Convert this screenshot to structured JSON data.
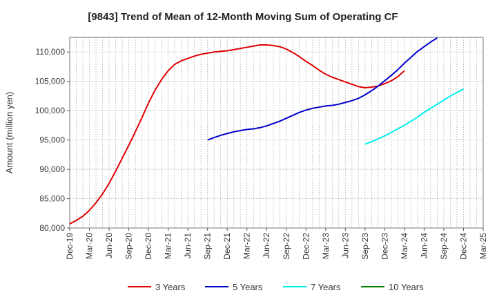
{
  "chart_data": {
    "type": "line",
    "title": "[9843]  Trend of Mean of 12-Month Moving Sum of Operating CF",
    "ylabel": "Amount (million yen)",
    "xlabel": "",
    "ylim": [
      80000,
      112500
    ],
    "yticks": [
      80000,
      85000,
      90000,
      95000,
      100000,
      105000,
      110000
    ],
    "ytick_labels": [
      "80,000",
      "85,000",
      "90,000",
      "95,000",
      "100,000",
      "105,000",
      "110,000"
    ],
    "x_start": "Dec-19",
    "x_end": "Mar-25",
    "x_tick_labels": [
      "Dec-19",
      "Mar-20",
      "Jun-20",
      "Sep-20",
      "Dec-20",
      "Mar-21",
      "Jun-21",
      "Sep-21",
      "Dec-21",
      "Mar-22",
      "Jun-22",
      "Sep-22",
      "Dec-22",
      "Mar-23",
      "Jun-23",
      "Sep-23",
      "Dec-23",
      "Mar-24",
      "Jun-24",
      "Sep-24",
      "Dec-24",
      "Mar-25"
    ],
    "grid": true,
    "legend_position": "bottom",
    "series": [
      {
        "name": "3 Years",
        "color": "#e00000",
        "start_index": 0,
        "values": [
          80700,
          81300,
          82000,
          83000,
          84300,
          85800,
          87600,
          89700,
          91900,
          94100,
          96400,
          98800,
          101300,
          103500,
          105300,
          106800,
          107900,
          108500,
          108900,
          109300,
          109600,
          109800,
          110000,
          110100,
          110200,
          110400,
          110600,
          110800,
          111000,
          111200,
          111200,
          111100,
          110900,
          110500,
          109900,
          109200,
          108400,
          107700,
          106900,
          106200,
          105700,
          105300,
          104900,
          104500,
          104100,
          103900,
          104000,
          104200,
          104600,
          105100,
          105800,
          106800
        ]
      },
      {
        "name": "5 Years",
        "color": "#0000cc",
        "start_index": 21,
        "values": [
          95000,
          95400,
          95800,
          96100,
          96400,
          96600,
          96800,
          96900,
          97100,
          97400,
          97800,
          98200,
          98700,
          99200,
          99700,
          100100,
          100400,
          100600,
          100800,
          100900,
          101100,
          101400,
          101700,
          102100,
          102700,
          103400,
          104200,
          105100,
          106000,
          107000,
          108100,
          109100,
          110100,
          110900,
          111700,
          112400
        ]
      },
      {
        "name": "7 Years",
        "color": "#00eeee",
        "start_index": 45,
        "values": [
          94300,
          94700,
          95200,
          95700,
          96300,
          96900,
          97500,
          98200,
          98900,
          99700,
          100400,
          101100,
          101800,
          102500,
          103100,
          103700
        ]
      },
      {
        "name": "10 Years",
        "color": "#008000",
        "start_index": 0,
        "values": []
      }
    ]
  }
}
